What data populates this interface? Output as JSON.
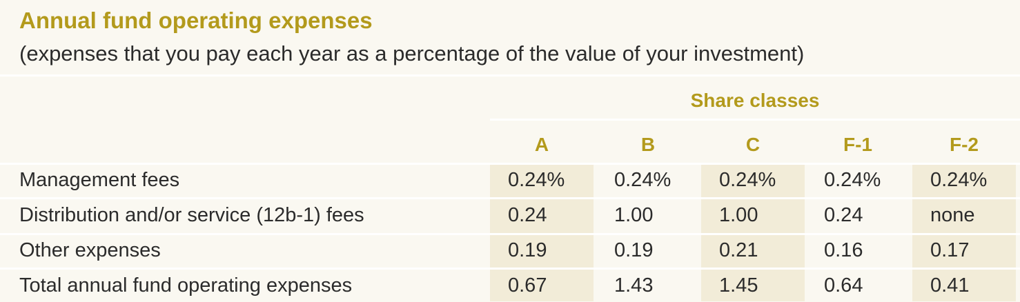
{
  "title": "Annual fund operating expenses",
  "subtitle": "(expenses that you pay each year as a percentage of the value of your investment)",
  "table": {
    "group_header": "Share classes",
    "columns": [
      "A",
      "B",
      "C",
      "F-1",
      "F-2"
    ],
    "rows": [
      {
        "label": "Management fees",
        "values": [
          "0.24%",
          "0.24%",
          "0.24%",
          "0.24%",
          "0.24%"
        ]
      },
      {
        "label": "Distribution and/or service (12b-1) fees",
        "values": [
          "0.24",
          "1.00",
          "1.00",
          "0.24",
          "none"
        ]
      },
      {
        "label": "Other expenses",
        "values": [
          "0.19",
          "0.19",
          "0.21",
          "0.16",
          "0.17"
        ]
      },
      {
        "label": "Total annual fund operating expenses",
        "values": [
          "0.67",
          "1.43",
          "1.45",
          "0.64",
          "0.41"
        ]
      }
    ]
  }
}
